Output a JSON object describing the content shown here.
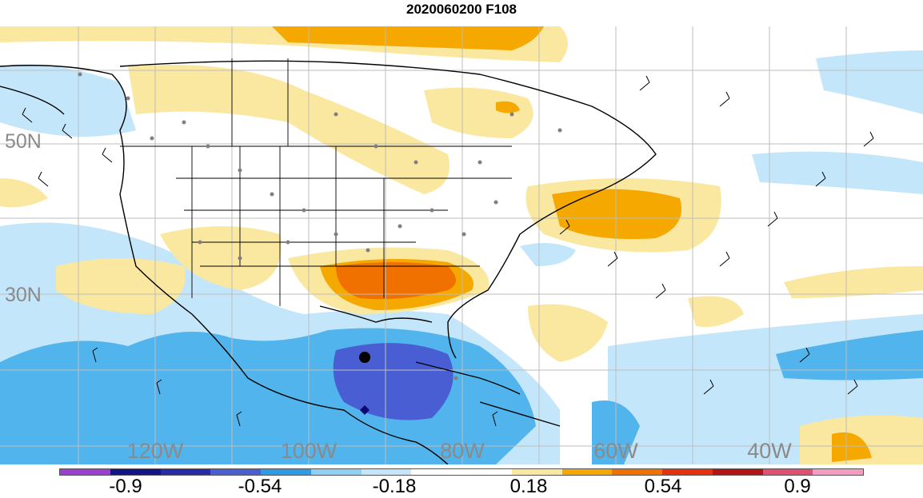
{
  "title": "2020060200 F108",
  "map": {
    "lat_labels": [
      "50N",
      "30N"
    ],
    "lon_labels": [
      "120W",
      "100W",
      "80W",
      "60W",
      "40W"
    ]
  },
  "colorbar": {
    "colors": [
      "#9a3fd0",
      "#13138a",
      "#2a2aa8",
      "#4a5ed3",
      "#2c9ce8",
      "#8fd0f4",
      "#c4e6fa",
      "#ffffff",
      "#ffffff",
      "#fbe8a0",
      "#f5a800",
      "#f07000",
      "#e83010",
      "#b41414",
      "#e05070",
      "#f49cc2"
    ],
    "tick_labels": [
      "-0.9",
      "-0.54",
      "-0.18",
      "0.18",
      "0.54",
      "0.9"
    ]
  }
}
